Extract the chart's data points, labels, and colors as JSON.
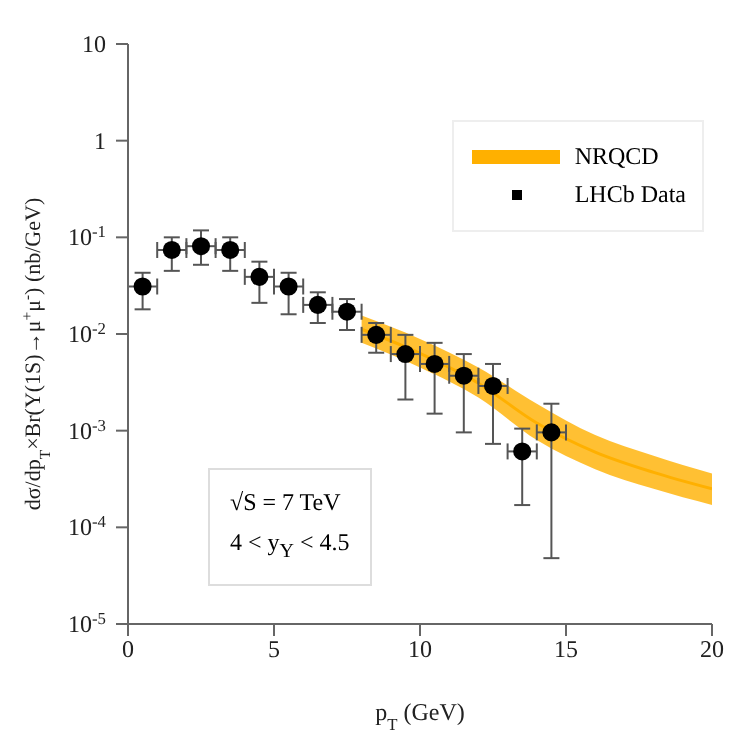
{
  "chart_data": {
    "type": "scatter",
    "xlabel": "p$_{T}$ (GeV)",
    "ylabel": "dσ/dp$_{T}$×Br(Υ(1S)→μ$^{+}$μ$^{-}$) (nb/GeV)",
    "log": "y",
    "xlim": [
      0,
      20
    ],
    "xticks": [
      0,
      5,
      10,
      15,
      20
    ],
    "ylim": [
      1e-05,
      10
    ],
    "yticks": [
      {
        "value": 1e-05,
        "label": "10$^{-5}$"
      },
      {
        "value": 0.0001,
        "label": "10$^{-4}$"
      },
      {
        "value": 0.001,
        "label": "10$^{-3}$"
      },
      {
        "value": 0.01,
        "label": "10$^{-2}$"
      },
      {
        "value": 0.1,
        "label": "10$^{-1}$"
      },
      1,
      10
    ],
    "legend": "top right",
    "marker": "circle",
    "annotations": [
      "√S = 7 TeV",
      "4 < y$_{Υ}$ < 4.5"
    ],
    "series": [
      {
        "name": "NRQCD",
        "type": "line",
        "marker": "none",
        "color": "#ffb000",
        "x": [
          8,
          10,
          12,
          14,
          16,
          18,
          20
        ],
        "values": [
          0.0112,
          0.0063,
          0.0031,
          0.0012,
          0.0006,
          0.00037,
          0.00025
        ],
        "lower": [
          0.0081,
          0.0045,
          0.0022,
          0.0008,
          0.0004,
          0.00025,
          0.00017
        ],
        "upper": [
          0.0155,
          0.0089,
          0.0045,
          0.0019,
          0.0009,
          0.00055,
          0.00036
        ]
      },
      {
        "name": "LHCb Data",
        "color": "#000000",
        "x": [
          0.5,
          1.5,
          2.5,
          3.5,
          4.5,
          5.5,
          6.5,
          7.5,
          8.5,
          9.5,
          10.5,
          11.5,
          12.5,
          13.5,
          14.5
        ],
        "values": [
          0.031,
          0.074,
          0.081,
          0.074,
          0.039,
          0.031,
          0.02,
          0.017,
          0.0098,
          0.0062,
          0.0049,
          0.0037,
          0.0029,
          0.00061,
          0.00096
        ],
        "errors": [
          [
            0.018,
            0.043
          ],
          [
            0.045,
            0.1
          ],
          [
            0.052,
            0.118
          ],
          [
            0.045,
            0.1
          ],
          [
            0.021,
            0.056
          ],
          [
            0.016,
            0.043
          ],
          [
            0.013,
            0.027
          ],
          [
            0.011,
            0.023
          ],
          [
            0.0064,
            0.013
          ],
          [
            0.0021,
            0.0098
          ],
          [
            0.0015,
            0.0081
          ],
          [
            0.00096,
            0.0062
          ],
          [
            0.00073,
            0.0049
          ],
          [
            0.00017,
            0.00105
          ],
          [
            4.8e-05,
            0.0019
          ]
        ],
        "xerrors": [
          0.5,
          0.5,
          0.5,
          0.5,
          0.5,
          0.5,
          0.5,
          0.5,
          0.5,
          0.5,
          0.5,
          0.5,
          0.5,
          0.5,
          0.5
        ]
      }
    ]
  }
}
